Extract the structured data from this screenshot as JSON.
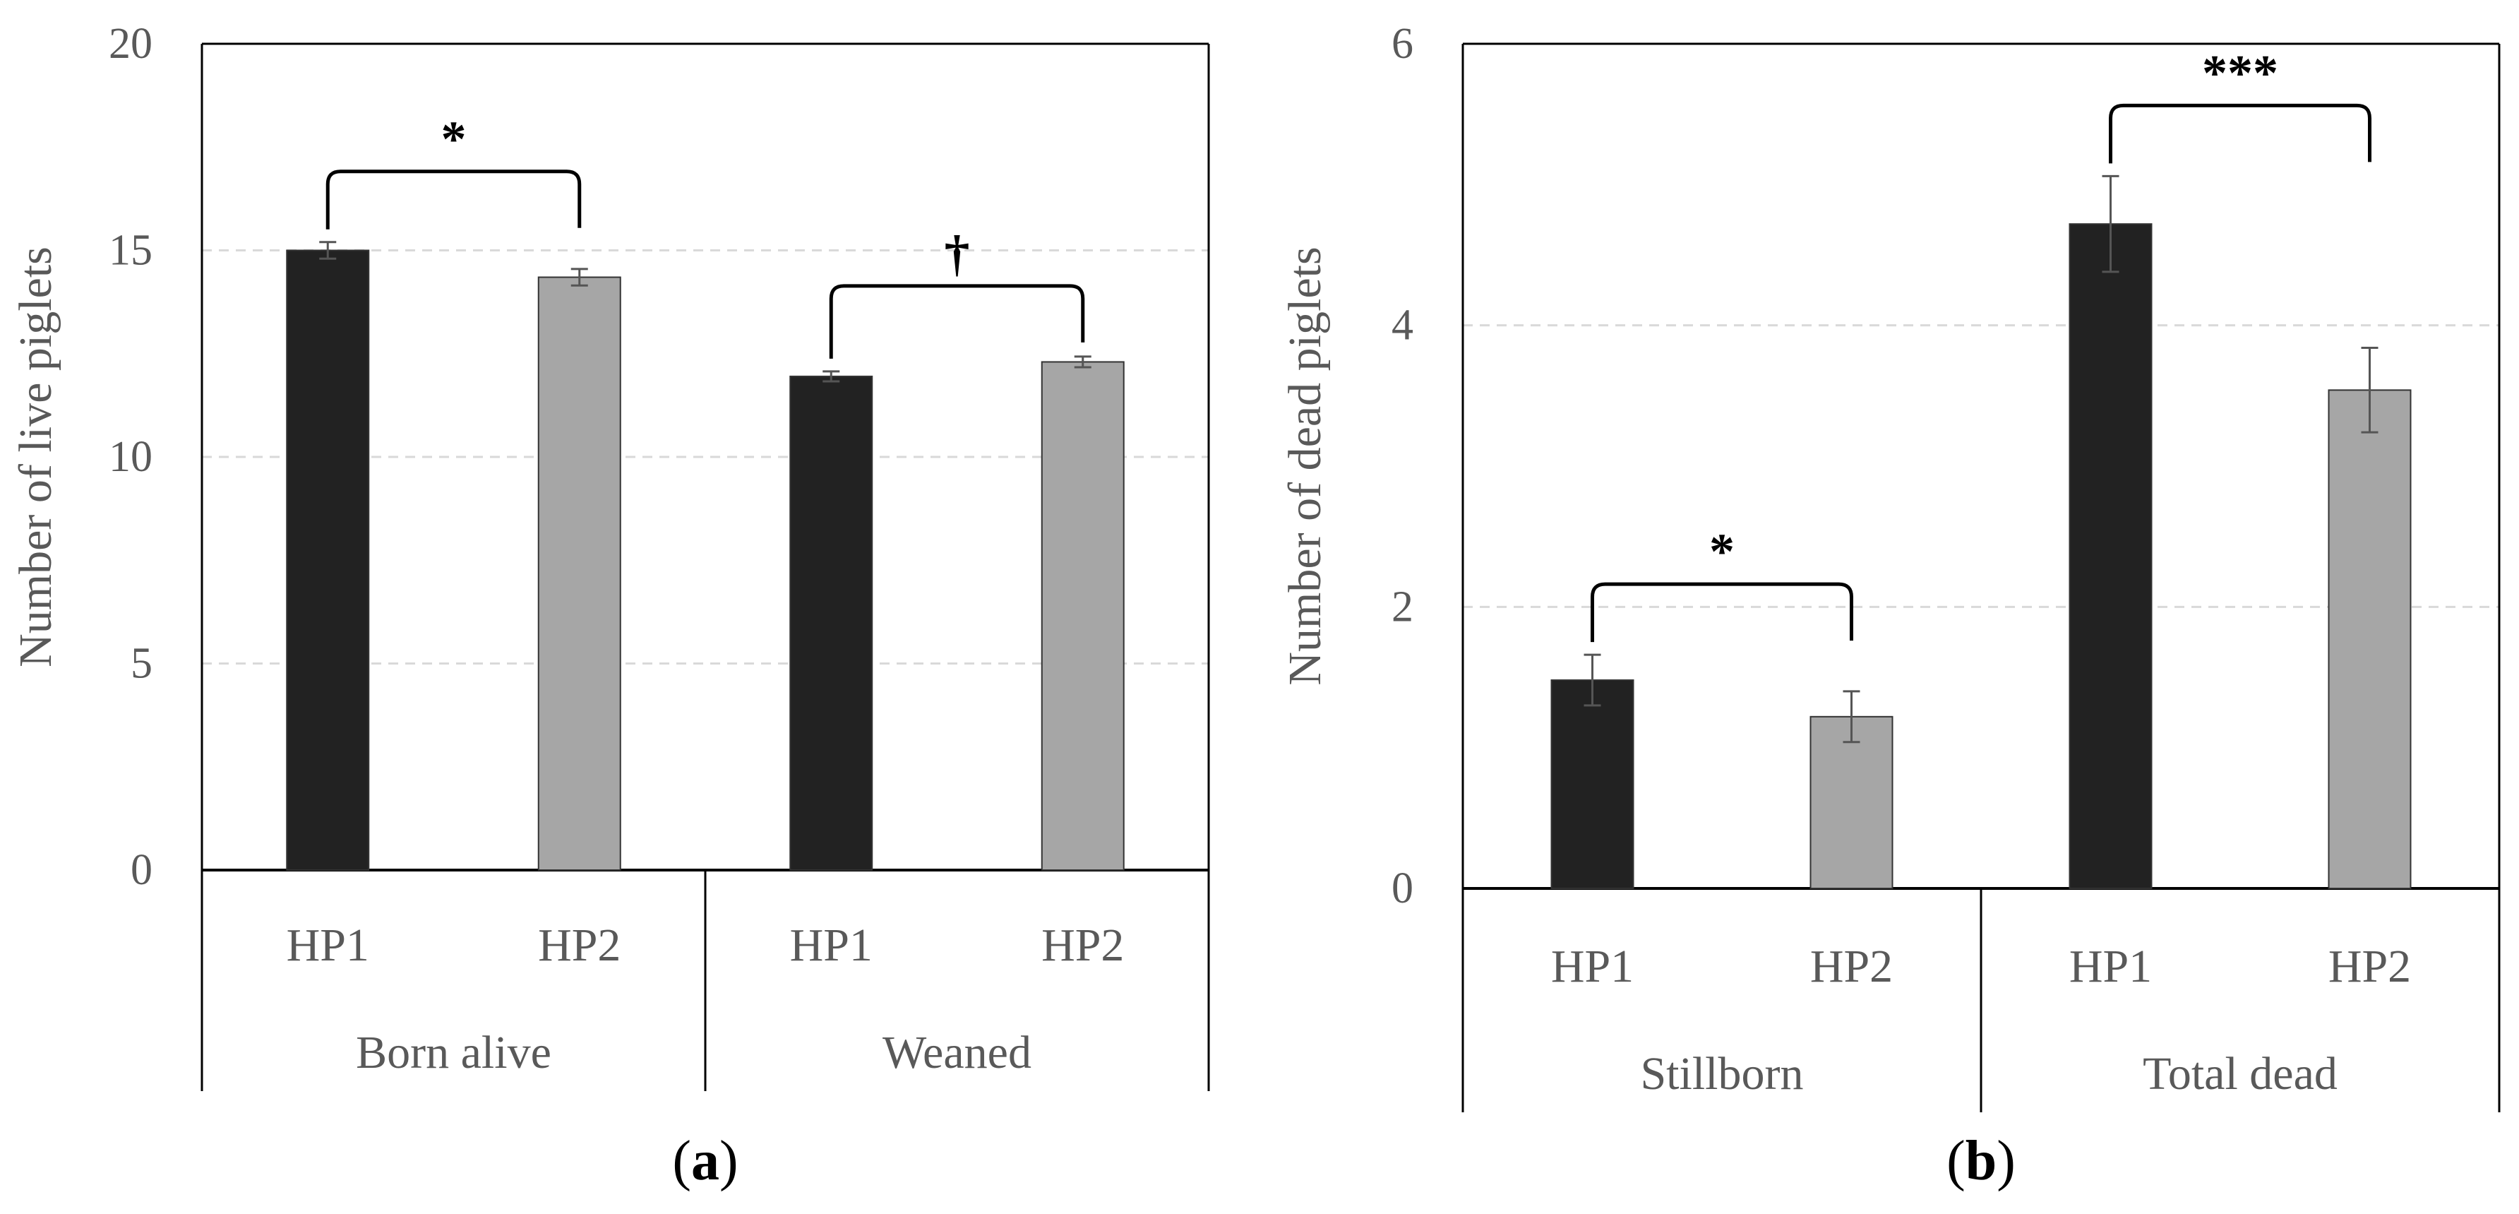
{
  "colors": {
    "HP1": "#222222",
    "HP2": "#a6a6a6",
    "grid": "#d9d9d9",
    "axis": "#000000",
    "error_bar": "#555555"
  },
  "chart_data": [
    {
      "type": "bar",
      "panel_label": "(a)",
      "ylabel": "Number of live piglets",
      "ylim": [
        0,
        20
      ],
      "yticks": [
        0,
        5,
        10,
        15,
        20
      ],
      "grid": true,
      "groups": [
        {
          "name": "Born alive",
          "bars": [
            {
              "category": "HP1",
              "value": 15.0,
              "error": 0.2
            },
            {
              "category": "HP2",
              "value": 14.35,
              "error": 0.2
            }
          ],
          "significance": "*"
        },
        {
          "name": "Weaned",
          "bars": [
            {
              "category": "HP1",
              "value": 11.95,
              "error": 0.12
            },
            {
              "category": "HP2",
              "value": 12.3,
              "error": 0.13
            }
          ],
          "significance": "†"
        }
      ]
    },
    {
      "type": "bar",
      "panel_label": "(b)",
      "ylabel": "Number of dead piglets",
      "ylim": [
        0,
        6
      ],
      "yticks": [
        0,
        2,
        4,
        6
      ],
      "grid": true,
      "groups": [
        {
          "name": "Stillborn",
          "bars": [
            {
              "category": "HP1",
              "value": 1.48,
              "error": 0.18
            },
            {
              "category": "HP2",
              "value": 1.22,
              "error": 0.18
            }
          ],
          "significance": "*"
        },
        {
          "name": "Total dead",
          "bars": [
            {
              "category": "HP1",
              "value": 4.72,
              "error": 0.34
            },
            {
              "category": "HP2",
              "value": 3.54,
              "error": 0.3
            }
          ],
          "significance": "***"
        }
      ]
    }
  ]
}
